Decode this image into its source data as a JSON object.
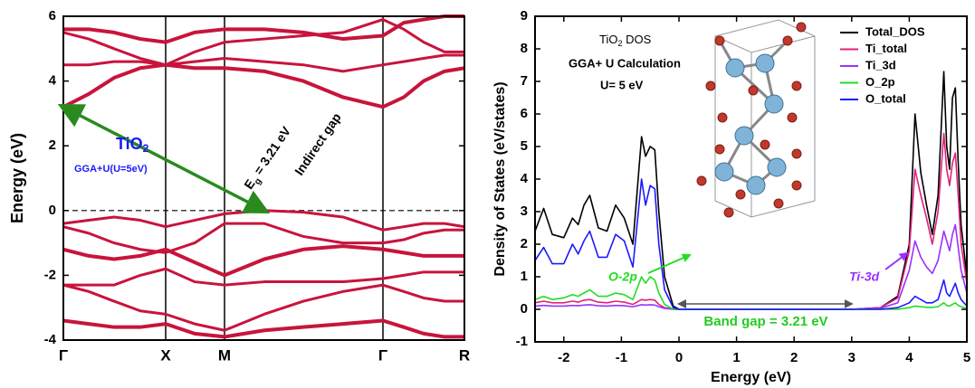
{
  "chart_data": [
    {
      "type": "line",
      "ylabel": "Energy (eV)",
      "x": [
        0,
        0.28,
        0.56,
        0.85,
        1.13,
        1.45,
        1.78,
        2.22,
        2.65,
        3.09,
        3.53,
        3.76,
        3.98,
        4.21,
        4.43
      ],
      "xlim": [
        0,
        4.43
      ],
      "xticks": [
        {
          "value": 0,
          "label": "Γ"
        },
        {
          "value": 1.13,
          "label": "X"
        },
        {
          "value": 1.78,
          "label": "M"
        },
        {
          "value": 3.53,
          "label": "Γ"
        },
        {
          "value": 4.43,
          "label": "R"
        }
      ],
      "ylim": [
        -4,
        6
      ],
      "yticks": [
        -4,
        -2,
        0,
        2,
        4,
        6
      ],
      "fermi_level": 0,
      "series": [
        {
          "color": "#c8143c",
          "values": [
            3.2,
            3.6,
            4.1,
            4.4,
            4.5,
            4.4,
            4.4,
            4.3,
            4.0,
            3.5,
            3.2,
            3.5,
            4.0,
            4.3,
            4.4
          ]
        },
        {
          "color": "#c8143c",
          "values": [
            4.5,
            4.5,
            4.6,
            4.6,
            4.5,
            4.6,
            4.7,
            4.6,
            4.5,
            4.3,
            4.5,
            4.6,
            4.7,
            4.8,
            4.8
          ]
        },
        {
          "color": "#c8143c",
          "values": [
            5.5,
            5.3,
            5.0,
            4.7,
            4.5,
            4.9,
            5.2,
            5.3,
            5.4,
            5.5,
            5.9,
            5.6,
            5.2,
            4.9,
            4.9
          ]
        },
        {
          "color": "#c8143c",
          "values": [
            5.6,
            5.6,
            5.5,
            5.3,
            5.2,
            5.5,
            5.6,
            5.6,
            5.5,
            5.3,
            5.4,
            5.8,
            5.9,
            6.0,
            6.0
          ]
        },
        {
          "color": "#c8143c",
          "values": [
            -0.4,
            -0.3,
            -0.2,
            -0.3,
            -0.5,
            -0.3,
            -0.1,
            0,
            -0.05,
            -0.2,
            -0.6,
            -0.5,
            -0.4,
            -0.4,
            -0.5
          ]
        },
        {
          "color": "#c8143c",
          "values": [
            -0.5,
            -0.7,
            -1.0,
            -1.2,
            -1.3,
            -1.0,
            -0.4,
            -0.4,
            -0.8,
            -1.0,
            -1.0,
            -0.9,
            -0.7,
            -0.6,
            -0.6
          ]
        },
        {
          "color": "#c8143c",
          "values": [
            -1.2,
            -1.4,
            -1.5,
            -1.4,
            -1.2,
            -1.6,
            -2.0,
            -1.5,
            -1.2,
            -1.1,
            -1.2,
            -1.3,
            -1.4,
            -1.4,
            -1.4
          ]
        },
        {
          "color": "#c8143c",
          "values": [
            -2.3,
            -2.3,
            -2.3,
            -2.0,
            -1.8,
            -2.2,
            -2.3,
            -2.2,
            -2.2,
            -2.2,
            -2.1,
            -2.0,
            -1.9,
            -1.9,
            -1.9
          ]
        },
        {
          "color": "#c8143c",
          "values": [
            -2.3,
            -2.5,
            -2.8,
            -3.1,
            -3.2,
            -3.5,
            -3.7,
            -3.2,
            -2.8,
            -2.5,
            -2.3,
            -2.5,
            -2.7,
            -2.8,
            -2.8
          ]
        },
        {
          "color": "#c8143c",
          "values": [
            -3.4,
            -3.5,
            -3.6,
            -3.6,
            -3.5,
            -3.8,
            -3.9,
            -3.7,
            -3.6,
            -3.5,
            -3.4,
            -3.6,
            -3.8,
            -3.9,
            -3.9
          ]
        }
      ],
      "annotations": {
        "material": [
          "TiO",
          "2"
        ],
        "method": "GGA+U(U=5eV)",
        "gap_label": [
          "E",
          "g",
          " = 3.21 eV"
        ],
        "gap_type": "Indirect gap"
      }
    },
    {
      "type": "line",
      "xlabel": "Energy (eV)",
      "ylabel": "Density of States (eV/states)",
      "x": [
        -2.5,
        -2.35,
        -2.2,
        -2.0,
        -1.85,
        -1.75,
        -1.65,
        -1.55,
        -1.4,
        -1.25,
        -1.1,
        -0.95,
        -0.8,
        -0.65,
        -0.58,
        -0.5,
        -0.42,
        -0.35,
        -0.25,
        -0.1,
        0,
        1,
        2,
        3,
        3.5,
        3.8,
        4.0,
        4.1,
        4.2,
        4.3,
        4.4,
        4.5,
        4.6,
        4.65,
        4.7,
        4.75,
        4.8,
        4.85,
        4.9,
        5.0
      ],
      "xlim": [
        -2.5,
        5
      ],
      "xticks": [
        -2,
        -1,
        0,
        1,
        2,
        3,
        4,
        5
      ],
      "ylim": [
        -1,
        9
      ],
      "yticks": [
        -1,
        0,
        1,
        2,
        3,
        4,
        5,
        6,
        7,
        8,
        9
      ],
      "legend": "upper right",
      "series": [
        {
          "name": "Total_DOS",
          "color": "#000000",
          "values": [
            2.4,
            3.1,
            2.3,
            2.2,
            2.8,
            2.6,
            3.2,
            3.5,
            2.5,
            2.4,
            3.2,
            2.8,
            2.0,
            5.3,
            4.7,
            5.0,
            4.9,
            3.0,
            1.0,
            0.1,
            0,
            0,
            0,
            0,
            0.05,
            0.4,
            2.0,
            6.0,
            4.2,
            3.2,
            2.3,
            3.5,
            7.3,
            5.0,
            4.3,
            6.5,
            6.8,
            4.5,
            2.6,
            1.0
          ]
        },
        {
          "name": "Ti_total",
          "color": "#e0207a",
          "values": [
            0.2,
            0.25,
            0.2,
            0.2,
            0.25,
            0.22,
            0.28,
            0.3,
            0.22,
            0.2,
            0.25,
            0.22,
            0.15,
            0.3,
            0.28,
            0.3,
            0.28,
            0.15,
            0.05,
            0,
            0,
            0,
            0,
            0,
            0.05,
            0.35,
            1.8,
            4.3,
            3.5,
            2.8,
            2.0,
            3.0,
            5.4,
            4.3,
            3.8,
            4.5,
            4.8,
            3.5,
            2.0,
            0.8
          ]
        },
        {
          "name": "Ti_3d",
          "color": "#9b30ff",
          "values": [
            0.1,
            0.12,
            0.1,
            0.1,
            0.12,
            0.11,
            0.13,
            0.14,
            0.11,
            0.1,
            0.12,
            0.11,
            0.08,
            0.14,
            0.13,
            0.14,
            0.13,
            0.08,
            0.03,
            0,
            0,
            0,
            0,
            0,
            0.03,
            0.2,
            1.2,
            2.1,
            1.6,
            1.3,
            1.1,
            1.5,
            2.4,
            2.1,
            1.8,
            2.3,
            2.6,
            1.9,
            1.2,
            0.5
          ]
        },
        {
          "name": "O_2p",
          "color": "#22dd22",
          "values": [
            0.3,
            0.4,
            0.3,
            0.35,
            0.45,
            0.4,
            0.5,
            0.6,
            0.4,
            0.4,
            0.5,
            0.45,
            0.3,
            1.0,
            0.8,
            1.0,
            0.9,
            0.5,
            0.15,
            0,
            0,
            0,
            0,
            0,
            0,
            0,
            0.05,
            0.1,
            0.08,
            0.06,
            0.06,
            0.08,
            0.2,
            0.12,
            0.1,
            0.15,
            0.2,
            0.12,
            0.08,
            0.03
          ]
        },
        {
          "name": "O_total",
          "color": "#1a1aff",
          "values": [
            1.5,
            1.9,
            1.4,
            1.4,
            2.0,
            1.7,
            2.1,
            2.4,
            1.6,
            1.6,
            2.3,
            2.1,
            1.3,
            4.0,
            3.2,
            3.8,
            3.7,
            2.0,
            0.6,
            0.05,
            0,
            0,
            0,
            0,
            0,
            0.05,
            0.2,
            0.4,
            0.3,
            0.2,
            0.2,
            0.3,
            0.9,
            0.5,
            0.4,
            0.6,
            0.8,
            0.5,
            0.3,
            0.1
          ]
        }
      ],
      "gap_range": [
        0,
        3
      ],
      "annotations": {
        "title": [
          "TiO",
          "2",
          " DOS"
        ],
        "method": "GGA+ U Calculation",
        "u": "U= 5 eV",
        "o_label": "O-2p",
        "ti_label": "Ti-3d",
        "gap_label": "Band gap = 3.21 eV"
      }
    }
  ]
}
